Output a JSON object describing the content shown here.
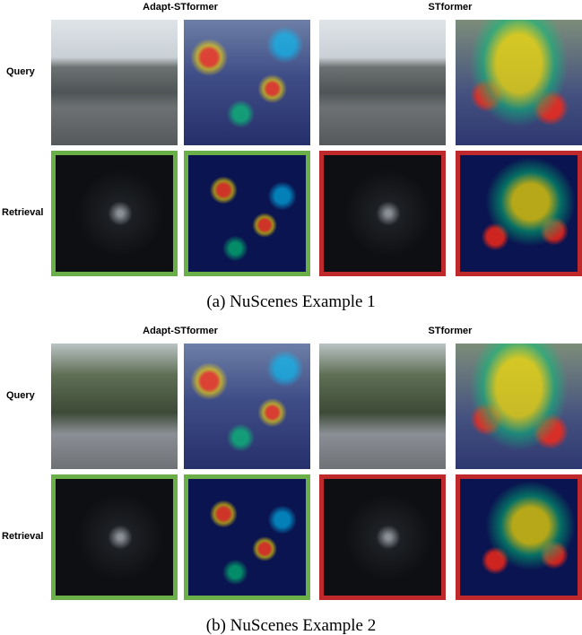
{
  "panels": [
    {
      "column_titles": [
        "Adapt-STformer",
        "STformer"
      ],
      "row_labels": [
        "Query",
        "Retrieval"
      ],
      "caption": "(a) NuScenes Example 1"
    },
    {
      "column_titles": [
        "Adapt-STformer",
        "STformer"
      ],
      "row_labels": [
        "Query",
        "Retrieval"
      ],
      "caption": "(b) NuScenes Example 2"
    }
  ]
}
